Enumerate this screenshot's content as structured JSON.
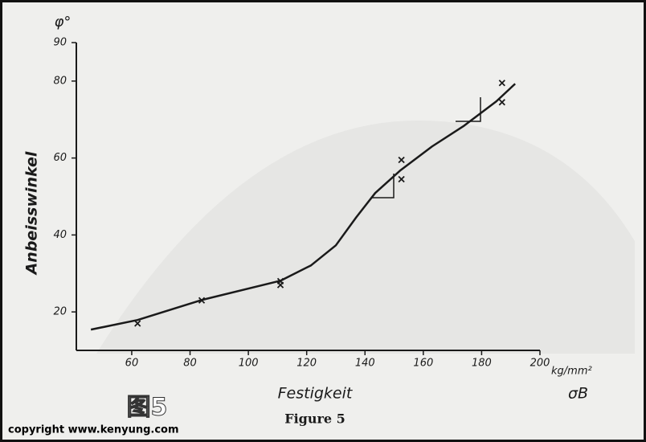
{
  "chart_data": {
    "type": "scatter",
    "y_symbol": "φ°",
    "ylabel": "Anbeisswinkel",
    "xlabel": "Festigkeit",
    "x_unit": "kg/mm²",
    "x_symbol": "σB",
    "caption": "Figure 5",
    "watermark": "图5",
    "copyright": "copyright www.kenyung.com",
    "xlim": [
      41,
      200
    ],
    "ylim": [
      10,
      90
    ],
    "xticks": [
      60,
      80,
      100,
      120,
      140,
      160,
      180,
      200
    ],
    "yticks": [
      20,
      40,
      60,
      80,
      90
    ],
    "series": [
      {
        "marker": "x",
        "color": "#1a1a1a",
        "x": [
          62,
          84,
          111,
          111,
          152.5,
          152.5,
          187,
          187
        ],
        "values": [
          17,
          23,
          28,
          27,
          59.5,
          54.5,
          79.5,
          74.5
        ]
      },
      {
        "marker": "line",
        "color": "#1a1a1a",
        "x": [
          46,
          62,
          84,
          111,
          121.5,
          130,
          137,
          143.5,
          152,
          163,
          174,
          185,
          191.5
        ],
        "values": [
          15.4,
          17.9,
          23.1,
          28.1,
          32.1,
          37.3,
          44.6,
          50.9,
          56.7,
          63,
          68.4,
          74.7,
          79.3
        ]
      }
    ]
  }
}
